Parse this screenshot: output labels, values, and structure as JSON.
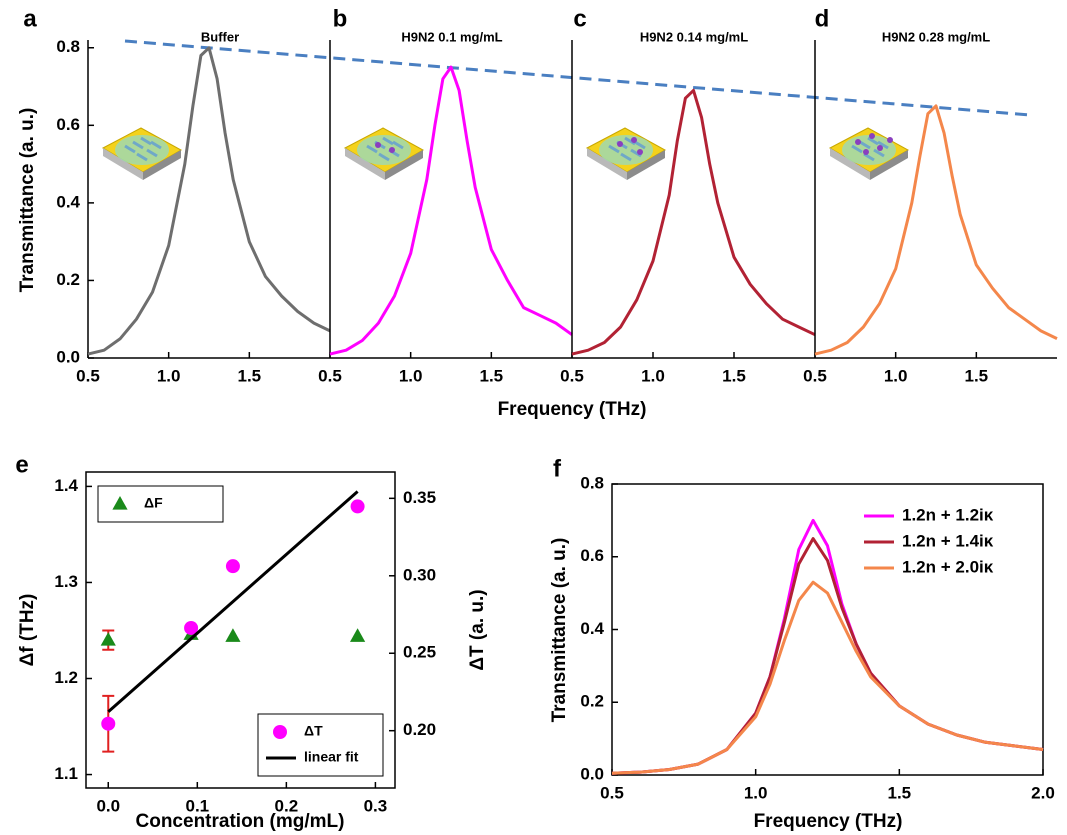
{
  "shared_xlabel": "Frequency (THz)",
  "chart_data": [
    {
      "type": "line",
      "letter": "a",
      "title": "Buffer",
      "ylabel": "Transmittance (a. u.)",
      "x": [
        0.5,
        0.6,
        0.7,
        0.8,
        0.9,
        1,
        1.1,
        1.15,
        1.2,
        1.25,
        1.3,
        1.35,
        1.4,
        1.5,
        1.6,
        1.7,
        1.8,
        1.9,
        2
      ],
      "series": [
        {
          "color": "#6e6e6e",
          "values": [
            0.01,
            0.02,
            0.05,
            0.1,
            0.17,
            0.29,
            0.5,
            0.65,
            0.78,
            0.8,
            0.72,
            0.58,
            0.46,
            0.3,
            0.21,
            0.16,
            0.12,
            0.09,
            0.07
          ]
        }
      ],
      "xlim": [
        0.5,
        2.0
      ],
      "ylim": [
        0,
        0.82
      ],
      "xticks": [
        0.5,
        {
          "value": 1,
          "label": "1.0"
        },
        1.5
      ],
      "yticks": [
        {
          "value": 0,
          "label": "0.0"
        },
        0.2,
        0.4,
        0.6,
        0.8
      ]
    },
    {
      "type": "line",
      "letter": "b",
      "title": "H9N2 0.1 mg/mL",
      "x": [
        0.5,
        0.6,
        0.7,
        0.8,
        0.9,
        1,
        1.1,
        1.15,
        1.2,
        1.25,
        1.3,
        1.35,
        1.4,
        1.5,
        1.6,
        1.7,
        1.8,
        1.9,
        2
      ],
      "series": [
        {
          "color": "#ff00ff",
          "values": [
            0.01,
            0.02,
            0.045,
            0.09,
            0.16,
            0.27,
            0.46,
            0.6,
            0.72,
            0.75,
            0.69,
            0.56,
            0.44,
            0.28,
            0.2,
            0.13,
            0.11,
            0.09,
            0.06
          ]
        }
      ],
      "xlim": [
        0.5,
        2.0
      ],
      "ylim": [
        0,
        0.82
      ],
      "xticks": [
        0.5,
        {
          "value": 1,
          "label": "1.0"
        },
        1.5
      ]
    },
    {
      "type": "line",
      "letter": "c",
      "title": "H9N2 0.14 mg/mL",
      "x": [
        0.5,
        0.6,
        0.7,
        0.8,
        0.9,
        1,
        1.1,
        1.15,
        1.2,
        1.25,
        1.3,
        1.35,
        1.4,
        1.5,
        1.6,
        1.7,
        1.8,
        1.9,
        2
      ],
      "series": [
        {
          "color": "#b22234",
          "values": [
            0.01,
            0.02,
            0.04,
            0.08,
            0.15,
            0.25,
            0.42,
            0.56,
            0.67,
            0.69,
            0.62,
            0.5,
            0.4,
            0.26,
            0.19,
            0.14,
            0.1,
            0.08,
            0.06
          ]
        }
      ],
      "xlim": [
        0.5,
        2.0
      ],
      "ylim": [
        0,
        0.82
      ],
      "xticks": [
        0.5,
        {
          "value": 1,
          "label": "1.0"
        },
        1.5
      ]
    },
    {
      "type": "line",
      "letter": "d",
      "title": "H9N2 0.28 mg/mL",
      "x": [
        0.5,
        0.6,
        0.7,
        0.8,
        0.9,
        1,
        1.1,
        1.15,
        1.2,
        1.25,
        1.3,
        1.35,
        1.4,
        1.5,
        1.6,
        1.7,
        1.8,
        1.9,
        2
      ],
      "series": [
        {
          "color": "#f4874b",
          "values": [
            0.01,
            0.02,
            0.04,
            0.08,
            0.14,
            0.23,
            0.4,
            0.52,
            0.63,
            0.65,
            0.58,
            0.47,
            0.37,
            0.24,
            0.18,
            0.13,
            0.1,
            0.07,
            0.05
          ]
        }
      ],
      "xlim": [
        0.5,
        2.0
      ],
      "ylim": [
        0,
        0.82
      ],
      "xticks": [
        0.5,
        {
          "value": 1,
          "label": "1.0"
        },
        1.5
      ]
    },
    {
      "type": "scatter",
      "letter": "e",
      "xlabel": "Concentration (mg/mL)",
      "ylabel": "Δf (THz)",
      "y2label": "ΔT (a. u.)",
      "legend_frame": true,
      "error_color": "#e02020",
      "series": [
        {
          "name": "ΔF",
          "marker": "triangle",
          "color": "#1a8a1a",
          "legend": "upper left",
          "x": [
            0,
            0.093,
            0.14,
            0.28
          ],
          "values": [
            1.24,
            1.246,
            1.244,
            1.244
          ],
          "errors": [
            0.01,
            null,
            null,
            null
          ]
        },
        {
          "name": "ΔT",
          "marker": "circle",
          "color": "#ff00ff",
          "axis": "y2",
          "legend": "lower right",
          "x": [
            0,
            0.093,
            0.14,
            0.28
          ],
          "values": [
            0.2045,
            0.2663,
            0.3062,
            0.3448
          ],
          "errors": [
            0.018,
            null,
            null,
            null
          ]
        },
        {
          "name": "linear fit",
          "marker": "line",
          "color": "#000000",
          "axis": "y2",
          "legend": "lower right",
          "x": [
            0,
            0.28
          ],
          "values": [
            0.2122,
            0.3544
          ]
        }
      ],
      "xlim": [
        -0.025,
        0.322
      ],
      "ylim": [
        1.086,
        1.415
      ],
      "y2lim": [
        0.163,
        0.367
      ],
      "xticks": [
        {
          "value": 0,
          "label": "0.0"
        },
        0.1,
        0.2,
        0.3
      ],
      "yticks": [
        1.1,
        1.2,
        1.3,
        1.4
      ],
      "y2ticks": [
        {
          "value": 0.2,
          "label": "0.20"
        },
        0.25,
        {
          "value": 0.3,
          "label": "0.30"
        },
        0.35
      ]
    },
    {
      "type": "line",
      "letter": "f",
      "xlabel": "Frequency (THz)",
      "ylabel": "Transmittance (a. u.)",
      "legend": "upper right",
      "legend_frame": false,
      "x": [
        0.5,
        0.6,
        0.7,
        0.8,
        0.9,
        1,
        1.05,
        1.1,
        1.15,
        1.2,
        1.25,
        1.3,
        1.35,
        1.4,
        1.5,
        1.6,
        1.7,
        1.8,
        1.9,
        2
      ],
      "series": [
        {
          "name": "1.2n + 1.2iκ",
          "color": "#ff00ff",
          "values": [
            0.005,
            0.008,
            0.015,
            0.03,
            0.07,
            0.17,
            0.27,
            0.43,
            0.62,
            0.7,
            0.63,
            0.47,
            0.36,
            0.28,
            0.19,
            0.14,
            0.11,
            0.09,
            0.08,
            0.07
          ]
        },
        {
          "name": "1.2n + 1.4iκ",
          "color": "#b22234",
          "values": [
            0.005,
            0.008,
            0.015,
            0.03,
            0.07,
            0.17,
            0.27,
            0.42,
            0.58,
            0.65,
            0.59,
            0.46,
            0.36,
            0.28,
            0.19,
            0.14,
            0.11,
            0.09,
            0.08,
            0.07
          ]
        },
        {
          "name": "1.2n + 2.0iκ",
          "color": "#f4874b",
          "values": [
            0.005,
            0.008,
            0.015,
            0.03,
            0.07,
            0.16,
            0.25,
            0.37,
            0.48,
            0.53,
            0.5,
            0.42,
            0.34,
            0.27,
            0.19,
            0.14,
            0.11,
            0.09,
            0.08,
            0.07
          ]
        }
      ],
      "xlim": [
        0.5,
        2.0
      ],
      "ylim": [
        0,
        0.8
      ],
      "xticks": [
        0.5,
        {
          "value": 1,
          "label": "1.0"
        },
        1.5,
        {
          "value": 2,
          "label": "2.0"
        }
      ],
      "yticks": [
        {
          "value": 0,
          "label": "0.0"
        },
        0.2,
        0.4,
        0.6,
        0.8
      ]
    }
  ]
}
